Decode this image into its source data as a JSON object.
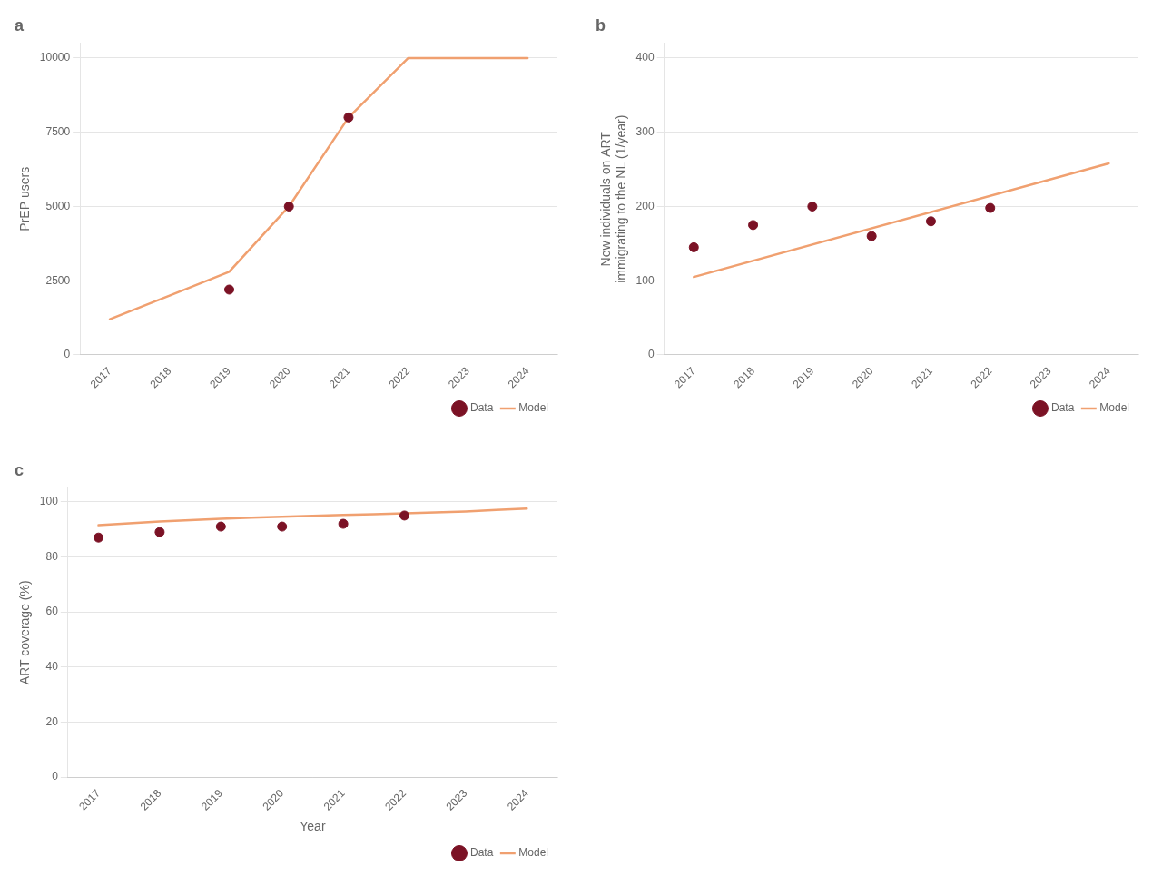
{
  "chart_data": [
    {
      "type": "line",
      "title": "a",
      "ylabel": "PrEP users",
      "xlim": [
        2016.5,
        2024.5
      ],
      "xticks": [
        2017,
        2018,
        2019,
        2020,
        2021,
        2022,
        2023,
        2024
      ],
      "ylim": [
        0,
        10500
      ],
      "yticks": [
        0,
        2500,
        5000,
        7500,
        10000
      ],
      "grid": "y",
      "legend": "lower right",
      "series": [
        {
          "name": "Data",
          "type": "scatter",
          "marker": "o",
          "color": "#7b1225",
          "x": [
            2019,
            2020,
            2021
          ],
          "values": [
            2200,
            5000,
            8000
          ]
        },
        {
          "name": "Model",
          "type": "line",
          "line_style": "solid",
          "color": "#f0a070",
          "x": [
            2017,
            2018,
            2019,
            2020,
            2021,
            2022,
            2023,
            2024
          ],
          "values": [
            1200,
            2000,
            2800,
            5000,
            8000,
            10000,
            10000,
            10000
          ]
        }
      ]
    },
    {
      "type": "line",
      "title": "b",
      "ylabel": "New individuals on ART\nimmigrating to the NL (1/year)",
      "xlim": [
        2016.5,
        2024.5
      ],
      "xticks": [
        2017,
        2018,
        2019,
        2020,
        2021,
        2022,
        2023,
        2024
      ],
      "ylim": [
        0,
        420
      ],
      "yticks": [
        0,
        100,
        200,
        300,
        400
      ],
      "grid": "y",
      "legend": "lower right",
      "series": [
        {
          "name": "Data",
          "type": "scatter",
          "marker": "o",
          "color": "#7b1225",
          "x": [
            2017,
            2018,
            2019,
            2020,
            2021,
            2022
          ],
          "values": [
            145,
            175,
            200,
            160,
            180,
            198
          ]
        },
        {
          "name": "Model",
          "type": "line",
          "line_style": "solid",
          "color": "#f0a070",
          "x": [
            2017,
            2024
          ],
          "values": [
            105,
            258
          ]
        }
      ]
    },
    {
      "type": "line",
      "title": "c",
      "ylabel": "ART coverage (%)",
      "xlabel": "Year",
      "xlim": [
        2016.5,
        2024.5
      ],
      "xticks": [
        2017,
        2018,
        2019,
        2020,
        2021,
        2022,
        2023,
        2024
      ],
      "ylim": [
        0,
        105
      ],
      "yticks": [
        0,
        20,
        40,
        60,
        80,
        100
      ],
      "grid": "y",
      "legend": "lower right",
      "series": [
        {
          "name": "Data",
          "type": "scatter",
          "marker": "o",
          "color": "#7b1225",
          "x": [
            2017,
            2018,
            2019,
            2020,
            2021,
            2022
          ],
          "values": [
            87,
            89,
            91,
            91,
            92,
            95
          ]
        },
        {
          "name": "Model",
          "type": "line",
          "line_style": "solid",
          "color": "#f0a070",
          "x": [
            2017,
            2017.5,
            2018,
            2018.5,
            2019,
            2019.5,
            2020,
            2020.5,
            2021,
            2021.5,
            2022,
            2022.5,
            2023,
            2023.5,
            2024
          ],
          "values": [
            91.5,
            92.2,
            92.8,
            93.3,
            93.8,
            94.2,
            94.6,
            94.9,
            95.2,
            95.5,
            95.8,
            96.1,
            96.5,
            97.0,
            97.5
          ]
        }
      ]
    }
  ]
}
